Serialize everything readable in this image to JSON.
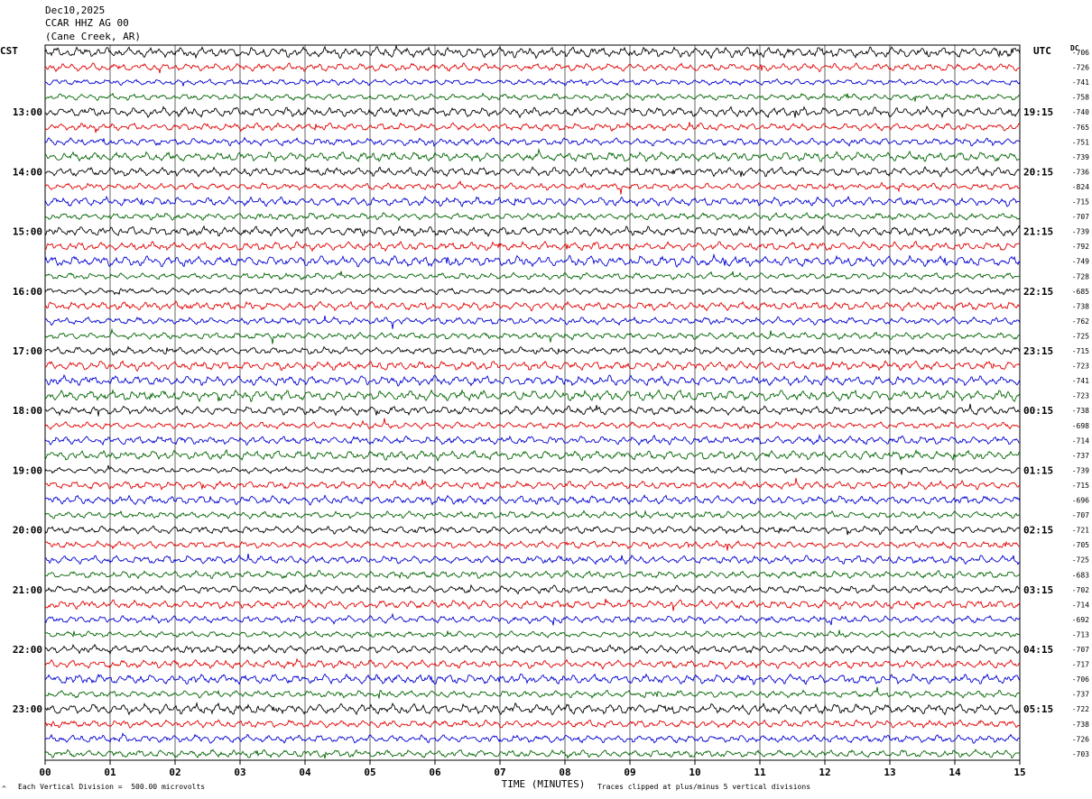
{
  "header": {
    "date": "Dec10,2025",
    "station": "CCAR HHZ AG 00",
    "location": "(Cane Creek, AR)"
  },
  "left_label": "CST",
  "right_label": "UTC",
  "dc_label": "DC",
  "footer": {
    "scale": "Each Vertical Division =  500.00 microvolts",
    "clip": "Traces clipped at plus/minus 5 vertical divisions",
    "mark": "^"
  },
  "colors": {
    "trace_cycle": [
      "#000000",
      "#e00000",
      "#0000d0",
      "#006400"
    ],
    "grid": "#000000"
  },
  "chart_data": {
    "type": "line",
    "xlabel": "TIME (MINUTES)",
    "xlim": [
      0,
      15
    ],
    "x_ticks": [
      "00",
      "01",
      "02",
      "03",
      "04",
      "05",
      "06",
      "07",
      "08",
      "09",
      "10",
      "11",
      "12",
      "13",
      "14",
      "15"
    ],
    "traces_per_hour": 4,
    "cst_hour_labels": [
      "13:00",
      "14:00",
      "15:00",
      "16:00",
      "17:00",
      "18:00",
      "19:00",
      "20:00",
      "21:00",
      "22:00",
      "23:00"
    ],
    "utc_hour_labels": [
      "19:15",
      "20:15",
      "21:15",
      "22:15",
      "23:15",
      "00:15",
      "01:15",
      "02:15",
      "03:15",
      "04:15",
      "05:15"
    ],
    "dc_offsets": [
      "-706",
      "-726",
      "-741",
      "-758",
      "-740",
      "-765",
      "-751",
      "-739",
      "-736",
      "-824",
      "-715",
      "-707",
      "-739",
      "-792",
      "-749",
      "-728",
      "-685",
      "-738",
      "-762",
      "-725",
      "-715",
      "-723",
      "-741",
      "-723",
      "-738",
      "-698",
      "-714",
      "-737",
      "-739",
      "-715",
      "-696",
      "-707",
      "-721",
      "-705",
      "-725",
      "-683",
      "-702",
      "-714",
      "-692",
      "-713",
      "-707",
      "-717",
      "-706",
      "-737",
      "-722",
      "-738",
      "-726",
      "-703"
    ]
  }
}
